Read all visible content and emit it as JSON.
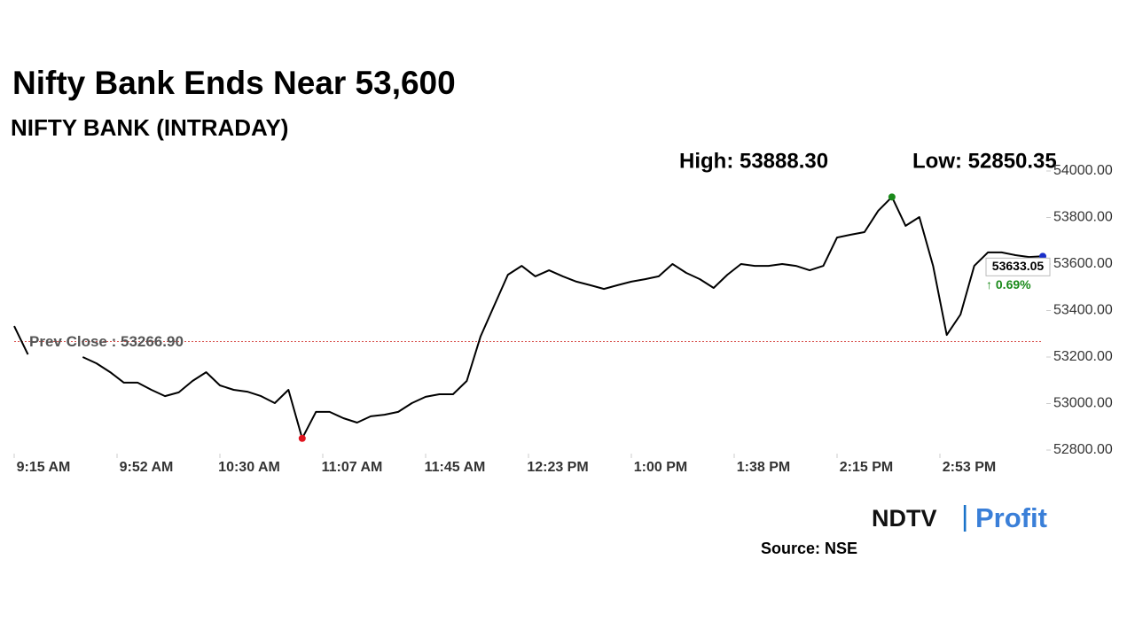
{
  "chart_data": {
    "type": "line",
    "title": "Nifty Bank Ends Near 53,600",
    "subtitle": "NIFTY BANK (INTRADAY)",
    "high_label": "High: 53888.30",
    "low_label": "Low: 52850.35",
    "prev_close": 53266.9,
    "prev_close_label": "Prev Close : 53266.90",
    "last_label": "53633.05",
    "change_label": "↑ 0.69%",
    "source": "Source: NSE",
    "logo": [
      "NDTV",
      "|",
      "Profit"
    ],
    "color": "#000000",
    "xticks": [
      "9:15 AM",
      "9:52 AM",
      "10:30 AM",
      "11:07 AM",
      "11:45 AM",
      "12:23 PM",
      "1:00 PM",
      "1:38 PM",
      "2:15 PM",
      "2:53 PM"
    ],
    "values": [
      53333,
      53211,
      null,
      null,
      null,
      53200,
      53173,
      53135,
      53090,
      53090,
      53059,
      53032,
      53048,
      53097,
      53135,
      53078,
      53059,
      53051,
      53032,
      53002,
      53059,
      52850.35,
      52964,
      52964,
      52937,
      52918,
      52945,
      52952,
      52964,
      53002,
      53029,
      53040,
      53040,
      53097,
      53288,
      53421,
      53554,
      53592,
      53547,
      53573,
      53547,
      53524,
      53509,
      53493,
      53509,
      53524,
      53535,
      53547,
      53600,
      53562,
      53535,
      53497,
      53554,
      53600,
      53592,
      53592,
      53600,
      53592,
      53573,
      53592,
      53714,
      53726,
      53737,
      53829,
      53888.3,
      53764,
      53802,
      53592,
      53295,
      53383,
      53592,
      53650,
      53650,
      53638,
      53630,
      53633.05
    ],
    "ylim": [
      52800,
      54000
    ],
    "yticks": [
      {
        "value": 52800,
        "label": "52800.00"
      },
      {
        "value": 53000,
        "label": "53000.00"
      },
      {
        "value": 53200,
        "label": "53200.00"
      },
      {
        "value": 53400,
        "label": "53400.00"
      },
      {
        "value": 53600,
        "label": "53600.00"
      },
      {
        "value": 53800,
        "label": "53800.00"
      },
      {
        "value": 54000,
        "label": "54000.00"
      }
    ],
    "grid": false
  }
}
